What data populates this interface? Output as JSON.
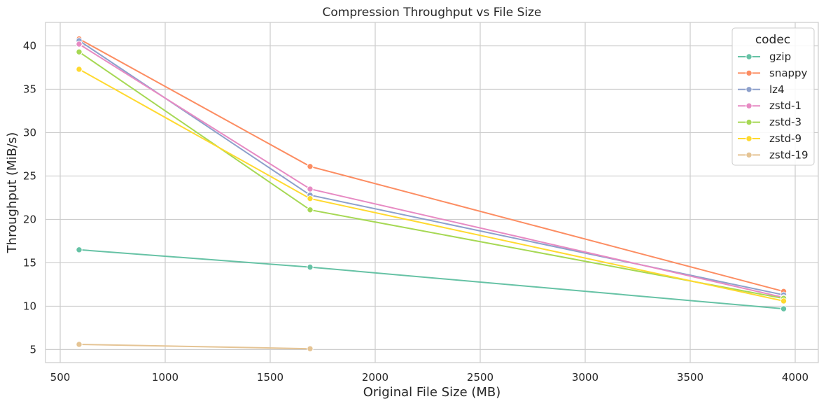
{
  "chart_data": {
    "type": "line",
    "title": "Compression Throughput vs File Size",
    "xlabel": "Original File Size (MB)",
    "ylabel": "Throughput (MiB/s)",
    "xlim": [
      430,
      4110
    ],
    "ylim": [
      3.5,
      42.7
    ],
    "xticks": [
      500,
      1000,
      1500,
      2000,
      2500,
      3000,
      3500,
      4000
    ],
    "yticks": [
      5,
      10,
      15,
      20,
      25,
      30,
      35,
      40
    ],
    "grid": true,
    "legend": {
      "title": "codec",
      "placement": "top-right"
    },
    "series": [
      {
        "name": "gzip",
        "color": "#66c2a5",
        "points": [
          [
            590,
            16.5
          ],
          [
            1690,
            14.5
          ],
          [
            3945,
            9.7
          ]
        ]
      },
      {
        "name": "snappy",
        "color": "#fc8d62",
        "points": [
          [
            590,
            40.8
          ],
          [
            1690,
            26.1
          ],
          [
            3945,
            11.7
          ]
        ]
      },
      {
        "name": "lz4",
        "color": "#8da0cb",
        "points": [
          [
            590,
            40.6
          ],
          [
            1690,
            22.8
          ],
          [
            3945,
            11.3
          ]
        ]
      },
      {
        "name": "zstd-1",
        "color": "#e78ac3",
        "points": [
          [
            590,
            40.2
          ],
          [
            1690,
            23.5
          ],
          [
            3945,
            11.0
          ]
        ]
      },
      {
        "name": "zstd-3",
        "color": "#a6d854",
        "points": [
          [
            590,
            39.3
          ],
          [
            1690,
            21.1
          ],
          [
            3945,
            10.9
          ]
        ]
      },
      {
        "name": "zstd-9",
        "color": "#ffd92f",
        "points": [
          [
            590,
            37.3
          ],
          [
            1690,
            22.4
          ],
          [
            3945,
            10.6
          ]
        ]
      },
      {
        "name": "zstd-19",
        "color": "#e5c494",
        "points": [
          [
            590,
            5.6
          ],
          [
            1690,
            5.1
          ]
        ]
      }
    ]
  }
}
